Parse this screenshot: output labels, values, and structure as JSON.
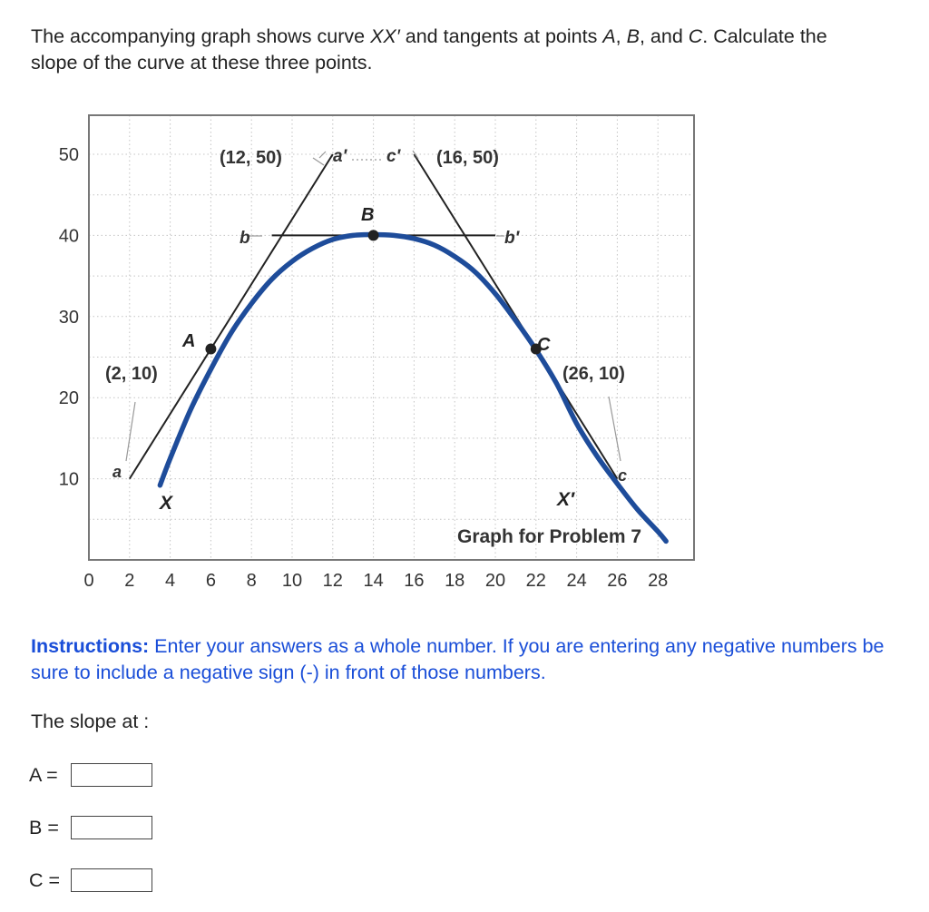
{
  "question": {
    "p1": "The accompanying graph shows curve ",
    "curve": "XX′",
    "p2": " and tangents at points ",
    "A": "A",
    "c1": ", ",
    "B": "B",
    "c2": ", and ",
    "C": "C",
    "p3": ". Calculate the slope of the curve at these three points."
  },
  "chart_data": {
    "type": "line",
    "title": "Graph for Problem 7",
    "x_ticks": [
      "0",
      "2",
      "4",
      "6",
      "8",
      "10",
      "12",
      "14",
      "16",
      "18",
      "20",
      "22",
      "24",
      "26",
      "28"
    ],
    "y_ticks": [
      "10",
      "20",
      "30",
      "40",
      "50"
    ],
    "xlim": [
      0,
      29
    ],
    "ylim": [
      0,
      55
    ],
    "grid": true,
    "series": [
      {
        "role": "curve",
        "x": [
          3.5,
          4,
          5,
          6,
          7,
          8,
          9,
          10,
          11,
          12,
          13,
          14,
          15,
          16,
          17,
          18,
          19,
          20,
          21,
          22,
          23,
          24,
          25,
          26,
          27,
          28,
          28.4
        ],
        "y": [
          9.2,
          12.5,
          18.5,
          23.5,
          28,
          31.6,
          34.6,
          36.8,
          38.4,
          39.5,
          40,
          40.1,
          40,
          39.6,
          38.8,
          37.4,
          35.5,
          32.8,
          29.5,
          25.9,
          21.8,
          16.8,
          12.8,
          9.4,
          6.2,
          3.5,
          2.3
        ]
      },
      {
        "role": "tangent-A",
        "x": [
          2,
          12
        ],
        "y": [
          10,
          50
        ]
      },
      {
        "role": "tangent-B",
        "x": [
          9,
          20
        ],
        "y": [
          40,
          40
        ]
      },
      {
        "role": "tangent-C",
        "x": [
          16,
          26
        ],
        "y": [
          50,
          10
        ]
      }
    ],
    "points": [
      {
        "label": "A",
        "x": 6,
        "y": 26
      },
      {
        "label": "B",
        "x": 14,
        "y": 40
      },
      {
        "label": "C",
        "x": 22,
        "y": 26
      }
    ],
    "annotations": {
      "coord_12_50": "(12, 50)",
      "coord_16_50": "(16, 50)",
      "coord_2_10": "(2, 10)",
      "coord_26_10": "(26, 10)",
      "a": "a",
      "a_prime": "a′",
      "b": "b",
      "b_prime": "b′",
      "c": "c",
      "c_prime": "c′",
      "X": "X",
      "X_prime": "X′"
    },
    "colors": {
      "curve": "#1e4c9a",
      "tangent": "#222222",
      "point": "#222222"
    }
  },
  "instructions": {
    "label": "Instructions:",
    "text": " Enter your answers as a whole number. If you are entering any negative numbers be sure to include a negative sign (-) in front of those numbers."
  },
  "slope_heading": "The slope at :",
  "answers": [
    {
      "label": "A =",
      "value": ""
    },
    {
      "label": "B =",
      "value": ""
    },
    {
      "label": "C =",
      "value": ""
    }
  ],
  "colors": {
    "instructions": "#1a4ed8"
  }
}
